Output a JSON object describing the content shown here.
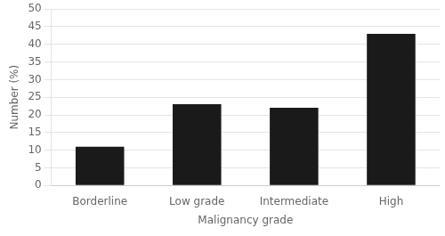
{
  "chart_data": {
    "type": "bar",
    "categories": [
      "Borderline",
      "Low grade",
      "Intermediate",
      "High"
    ],
    "values": [
      11,
      23,
      22,
      43
    ],
    "color": "#1a1a1a",
    "xlabel": "Malignancy grade",
    "ylabel": "Number (%)",
    "ylim": [
      0,
      50
    ],
    "yticks": [
      0,
      5,
      10,
      15,
      20,
      25,
      30,
      35,
      40,
      45,
      50
    ],
    "grid": true
  }
}
